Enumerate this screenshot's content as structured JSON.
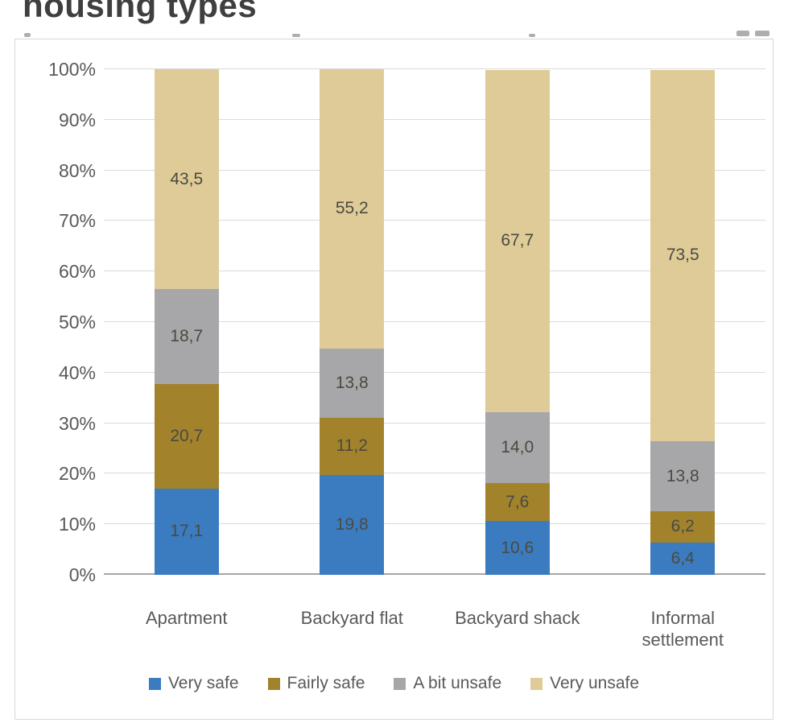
{
  "page": {
    "heading": "housing types"
  },
  "chart_data": {
    "type": "bar",
    "subtype": "stacked-100pct-column",
    "title": "housing types",
    "categories": [
      "Apartment",
      "Backyard flat",
      "Backyard shack",
      "Informal settlement"
    ],
    "series": [
      {
        "name": "Very safe",
        "color": "#3b7cc0",
        "values": [
          17.1,
          19.8,
          10.6,
          6.4
        ],
        "labels": [
          "17,1",
          "19,8",
          "10,6",
          "6,4"
        ]
      },
      {
        "name": "Fairly safe",
        "color": "#a2832c",
        "values": [
          20.7,
          11.2,
          7.6,
          6.2
        ],
        "labels": [
          "20,7",
          "11,2",
          "7,6",
          "6,2"
        ]
      },
      {
        "name": "A bit unsafe",
        "color": "#a7a7a9",
        "values": [
          18.7,
          13.8,
          14.0,
          13.8
        ],
        "labels": [
          "18,7",
          "13,8",
          "14,0",
          "13,8"
        ]
      },
      {
        "name": "Very unsafe",
        "color": "#decb97",
        "values": [
          43.5,
          55.2,
          67.7,
          73.5
        ],
        "labels": [
          "43,5",
          "55,2",
          "67,7",
          "73,5"
        ]
      }
    ],
    "y_axis": {
      "min": 0,
      "max": 100,
      "ticks": [
        "0%",
        "10%",
        "20%",
        "30%",
        "40%",
        "50%",
        "60%",
        "70%",
        "80%",
        "90%",
        "100%"
      ]
    },
    "legend": [
      "Very safe",
      "Fairly safe",
      "A bit unsafe",
      "Very unsafe"
    ],
    "legend_position": "bottom",
    "grid": true
  }
}
